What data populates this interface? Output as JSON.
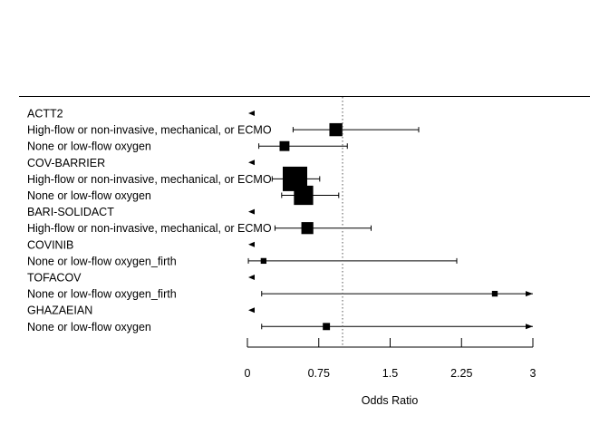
{
  "chart_data": {
    "type": "forest",
    "xlabel": "Odds Ratio",
    "xlim": [
      0,
      3
    ],
    "x_ticks": [
      0,
      0.75,
      1.5,
      2.25,
      3
    ],
    "x_tick_labels": [
      "0",
      "0.75",
      "1.5",
      "2.25",
      "3"
    ],
    "reference_line": 1,
    "rows": [
      {
        "label": "ACTT2",
        "header": true
      },
      {
        "label": "High-flow or non-invasive, mechanical, or ECMO",
        "or": 0.93,
        "lower": 0.48,
        "upper": 1.8,
        "weight": 0.45
      },
      {
        "label": "None or low-flow oxygen",
        "or": 0.39,
        "lower": 0.12,
        "upper": 1.05,
        "weight": 0.3
      },
      {
        "label": "COV-BARRIER",
        "header": true
      },
      {
        "label": "High-flow or non-invasive, mechanical, or ECMO",
        "or": 0.5,
        "lower": 0.26,
        "upper": 0.76,
        "weight": 1.0
      },
      {
        "label": "None or low-flow oxygen",
        "or": 0.59,
        "lower": 0.36,
        "upper": 0.96,
        "weight": 0.75
      },
      {
        "label": "BARI-SOLIDACT",
        "header": true
      },
      {
        "label": "High-flow or non-invasive, mechanical, or ECMO",
        "or": 0.63,
        "lower": 0.29,
        "upper": 1.3,
        "weight": 0.4
      },
      {
        "label": "COVINIB",
        "header": true
      },
      {
        "label": "None or low-flow oxygen_firth",
        "or": 0.17,
        "lower": 0.01,
        "upper": 2.2,
        "weight": 0.1
      },
      {
        "label": "TOFACOV",
        "header": true
      },
      {
        "label": "None or low-flow oxygen_firth",
        "or": 2.6,
        "lower": 0.15,
        "upper": 3,
        "weight": 0.1,
        "arrow_right": true
      },
      {
        "label": "GHAZAEIAN",
        "header": true
      },
      {
        "label": "None or low-flow oxygen",
        "or": 0.83,
        "lower": 0.15,
        "upper": 3,
        "weight": 0.17,
        "arrow_right": true
      }
    ]
  }
}
